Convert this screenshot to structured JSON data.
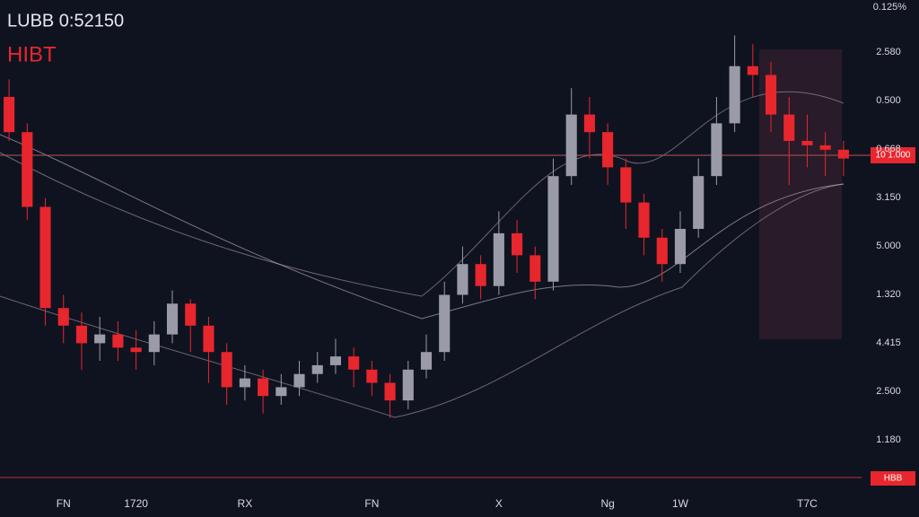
{
  "chart_data": {
    "type": "candlestick",
    "title": "LUBB 0:52150",
    "subtitle": "HIBT",
    "corner_label": "0.125%",
    "price_tag": "10 1.000",
    "bottom_tag": "HBB",
    "y_axis_labels": [
      "2.580",
      "0.500",
      "0.668",
      "3.150",
      "5.000",
      "1.320",
      "4.415",
      "2.500",
      "1.180"
    ],
    "ylim": [
      0,
      100
    ],
    "up_color": "#9a9aa8",
    "down_color": "#e8262d",
    "categories": [
      null,
      null,
      null,
      "FN",
      null,
      null,
      null,
      "1720",
      null,
      null,
      null,
      null,
      null,
      "RX",
      null,
      null,
      null,
      null,
      null,
      null,
      "FN",
      null,
      null,
      null,
      null,
      null,
      null,
      "X",
      null,
      null,
      null,
      null,
      null,
      "Ng",
      null,
      null,
      null,
      "1W",
      null,
      null,
      null,
      null,
      null,
      null,
      "T7C",
      null,
      null
    ],
    "open": [
      80,
      72,
      55,
      32,
      28,
      24,
      26,
      23,
      22,
      26,
      33,
      28,
      22,
      14,
      16,
      12,
      14,
      17,
      19,
      21,
      18,
      15,
      11,
      18,
      22,
      35,
      42,
      37,
      49,
      44,
      38,
      62,
      76,
      72,
      64,
      56,
      48,
      42,
      50,
      62,
      74,
      87,
      85,
      76,
      70,
      69,
      68
    ],
    "high": [
      84,
      74,
      57,
      35,
      31,
      30,
      29,
      27,
      29,
      36,
      34,
      30,
      24,
      19,
      18,
      17,
      20,
      22,
      25,
      23,
      20,
      17,
      20,
      26,
      38,
      46,
      44,
      54,
      52,
      46,
      66,
      82,
      80,
      74,
      66,
      58,
      50,
      54,
      66,
      80,
      94,
      92,
      88,
      80,
      76,
      72,
      70
    ],
    "low": [
      70,
      52,
      28,
      24,
      18,
      20,
      20,
      18,
      19,
      24,
      22,
      15,
      10,
      11,
      8,
      10,
      12,
      15,
      17,
      14,
      12,
      7,
      9,
      16,
      20,
      33,
      34,
      35,
      40,
      34,
      36,
      60,
      66,
      60,
      50,
      44,
      38,
      40,
      48,
      60,
      72,
      80,
      72,
      60,
      64,
      62,
      62
    ],
    "close": [
      72,
      55,
      32,
      28,
      24,
      26,
      23,
      22,
      26,
      33,
      28,
      22,
      14,
      16,
      12,
      14,
      17,
      19,
      21,
      18,
      15,
      11,
      18,
      22,
      35,
      42,
      37,
      49,
      44,
      38,
      62,
      76,
      72,
      64,
      56,
      48,
      42,
      50,
      62,
      74,
      87,
      85,
      76,
      70,
      69,
      68,
      66
    ]
  }
}
